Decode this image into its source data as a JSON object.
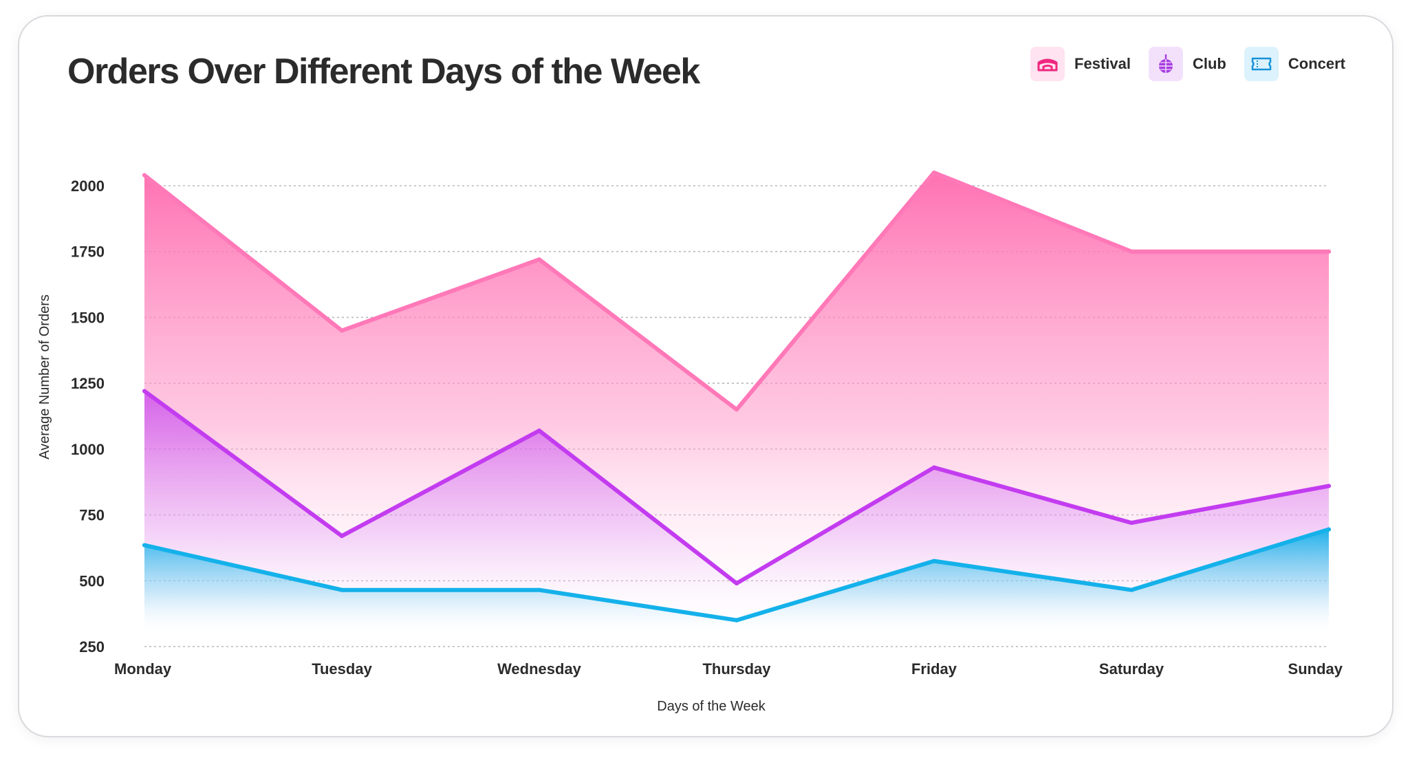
{
  "chart_data": {
    "type": "area",
    "title": "Orders Over Different Days of the Week",
    "xlabel": "Days of the Week",
    "ylabel": "Average Number of Orders",
    "categories": [
      "Monday",
      "Tuesday",
      "Wednesday",
      "Thursday",
      "Friday",
      "Saturday",
      "Sunday"
    ],
    "ylim": [
      250,
      2050
    ],
    "yticks": [
      250,
      500,
      750,
      1000,
      1250,
      1500,
      1750,
      2000
    ],
    "grid": true,
    "legend_position": "top-right",
    "series": [
      {
        "name": "Festival",
        "color": "#ff78b8",
        "icon": "stage-icon",
        "values": [
          2040,
          1450,
          1720,
          1150,
          2050,
          1750,
          1750
        ]
      },
      {
        "name": "Club",
        "color": "#c33cf0",
        "icon": "disco-ball-icon",
        "values": [
          1220,
          670,
          1070,
          490,
          930,
          720,
          860
        ]
      },
      {
        "name": "Concert",
        "color": "#14b1ea",
        "icon": "ticket-icon",
        "values": [
          635,
          465,
          465,
          350,
          575,
          465,
          695
        ]
      }
    ]
  }
}
